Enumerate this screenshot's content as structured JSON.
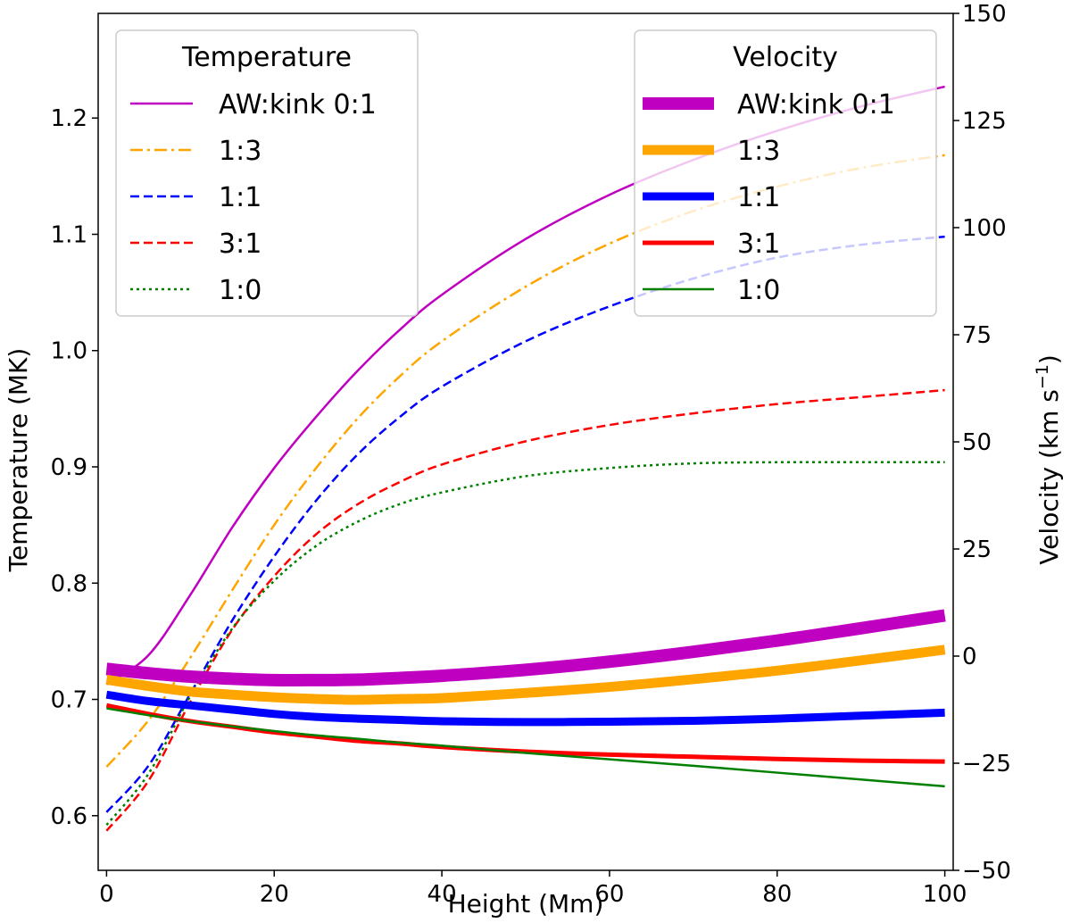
{
  "chart_data": {
    "type": "line",
    "xlabel": "Height (Mm)",
    "ylabel_left": "Temperature (MK)",
    "ylabel_right_main": "Velocity (km s",
    "ylabel_right_sup": "−1",
    "ylabel_right_close": ")",
    "xlim": [
      -1,
      101
    ],
    "ylim_left": [
      0.553,
      1.29
    ],
    "ylim_right": [
      -50,
      150
    ],
    "grid": false,
    "x_ticks": [
      0,
      20,
      40,
      60,
      80,
      100
    ],
    "left_ticks": [
      0.6,
      0.7,
      0.8,
      0.9,
      1.0,
      1.1,
      1.2
    ],
    "right_ticks": [
      -50,
      -25,
      0,
      25,
      50,
      75,
      100,
      125,
      150
    ],
    "right_tick_labels": [
      "−50",
      "−25",
      "0",
      "25",
      "50",
      "75",
      "100",
      "125",
      "150"
    ],
    "legend_temperature": {
      "title": "Temperature",
      "position": "upper-left",
      "entries": [
        "AW:kink 0:1",
        "1:3",
        "1:1",
        "3:1",
        "1:0"
      ]
    },
    "legend_velocity": {
      "title": "Velocity",
      "position": "upper-right",
      "entries": [
        "AW:kink 0:1",
        "1:3",
        "1:1",
        "3:1",
        "1:0"
      ]
    },
    "x": [
      0,
      5,
      10,
      15,
      20,
      25,
      30,
      35,
      40,
      50,
      60,
      70,
      80,
      90,
      100
    ],
    "temperature_series": [
      {
        "color": "#c000c0",
        "style": "solid",
        "values": [
          0.713,
          0.738,
          0.79,
          0.848,
          0.899,
          0.943,
          0.983,
          1.018,
          1.048,
          1.096,
          1.134,
          1.164,
          1.189,
          1.21,
          1.227
        ]
      },
      {
        "color": "#ffa500",
        "style": "dashdot",
        "values": [
          0.642,
          0.682,
          0.736,
          0.794,
          0.85,
          0.899,
          0.942,
          0.978,
          1.008,
          1.055,
          1.092,
          1.12,
          1.141,
          1.157,
          1.168
        ]
      },
      {
        "color": "#0000ff",
        "style": "dashed",
        "values": [
          0.603,
          0.643,
          0.705,
          0.768,
          0.823,
          0.871,
          0.911,
          0.943,
          0.969,
          1.008,
          1.038,
          1.062,
          1.08,
          1.091,
          1.098
        ]
      },
      {
        "color": "#ff0000",
        "style": "dashed",
        "values": [
          0.587,
          0.63,
          0.698,
          0.76,
          0.806,
          0.842,
          0.868,
          0.887,
          0.902,
          0.922,
          0.936,
          0.946,
          0.954,
          0.96,
          0.966
        ]
      },
      {
        "color": "#008000",
        "style": "dotted",
        "values": [
          0.592,
          0.636,
          0.703,
          0.761,
          0.802,
          0.832,
          0.853,
          0.868,
          0.878,
          0.892,
          0.899,
          0.903,
          0.904,
          0.904,
          0.904
        ]
      }
    ],
    "velocity_series": [
      {
        "color": "#c000c0",
        "width": 14,
        "values": [
          -3.0,
          -4.0,
          -4.8,
          -5.3,
          -5.6,
          -5.6,
          -5.5,
          -5.1,
          -4.6,
          -3.2,
          -1.3,
          1.0,
          3.6,
          6.5,
          9.5
        ]
      },
      {
        "color": "#ffa500",
        "width": 11,
        "values": [
          -5.5,
          -7.0,
          -8.3,
          -9.0,
          -9.6,
          -10.0,
          -10.2,
          -10.0,
          -9.8,
          -8.6,
          -7.2,
          -5.4,
          -3.4,
          -1.0,
          1.5
        ]
      },
      {
        "color": "#0000ff",
        "width": 9,
        "values": [
          -9.0,
          -10.5,
          -11.5,
          -12.5,
          -13.5,
          -14.2,
          -14.6,
          -14.9,
          -15.2,
          -15.4,
          -15.3,
          -15.1,
          -14.6,
          -13.9,
          -13.2
        ]
      },
      {
        "color": "#ff0000",
        "width": 5,
        "values": [
          -11.5,
          -13.5,
          -15.2,
          -16.5,
          -17.8,
          -18.8,
          -19.8,
          -20.4,
          -21.2,
          -22.3,
          -23.0,
          -23.5,
          -24.0,
          -24.4,
          -24.6
        ]
      },
      {
        "color": "#008000",
        "width": 2.5,
        "values": [
          -12.2,
          -13.8,
          -15.2,
          -16.4,
          -17.5,
          -18.5,
          -19.3,
          -20.2,
          -20.9,
          -22.6,
          -24.1,
          -25.6,
          -27.2,
          -28.8,
          -30.4
        ]
      }
    ]
  }
}
